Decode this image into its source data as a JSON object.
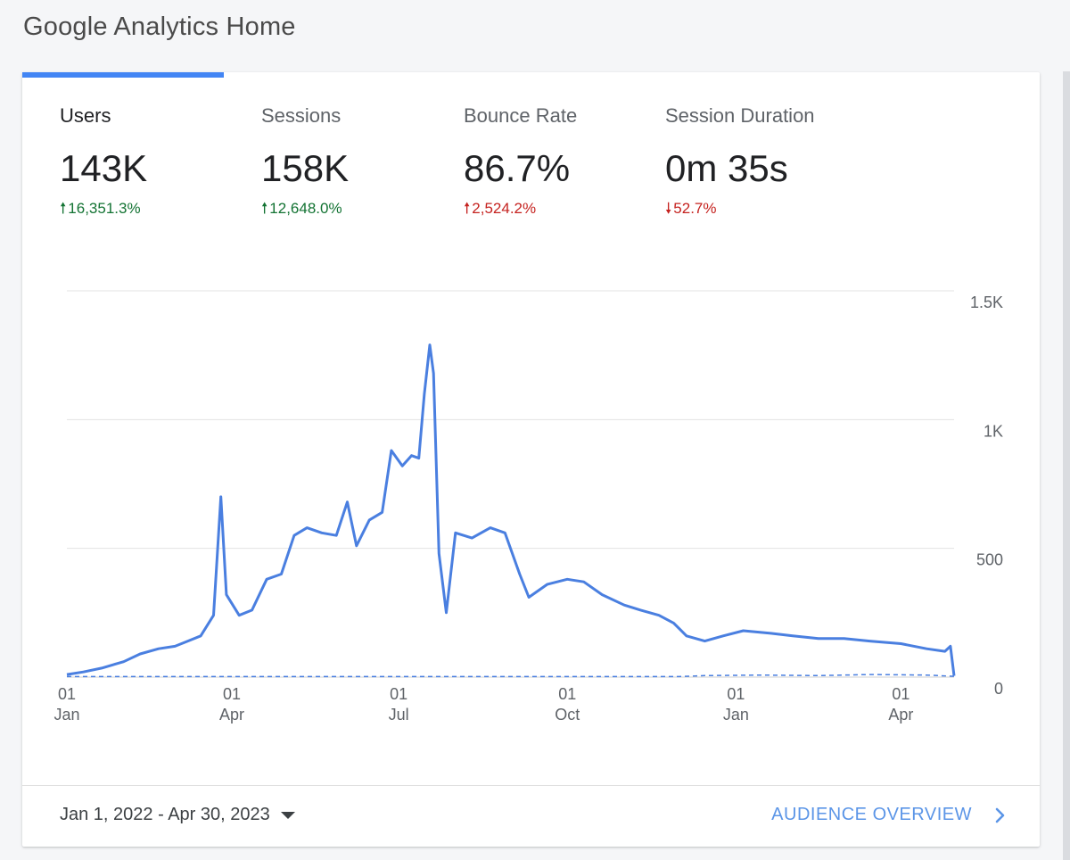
{
  "page": {
    "title": "Google Analytics Home"
  },
  "metrics": [
    {
      "label": "Users",
      "value": "143K",
      "change": "16,351.3%",
      "direction": "up",
      "color": "#137333"
    },
    {
      "label": "Sessions",
      "value": "158K",
      "change": "12,648.0%",
      "direction": "up",
      "color": "#137333"
    },
    {
      "label": "Bounce Rate",
      "value": "86.7%",
      "change": "2,524.2%",
      "direction": "up",
      "color": "#c5221f"
    },
    {
      "label": "Session Duration",
      "value": "0m 35s",
      "change": "52.7%",
      "direction": "down",
      "color": "#c5221f"
    }
  ],
  "icons": {
    "up_arrow": "arrow-up-icon",
    "down_arrow": "arrow-down-icon",
    "dropdown": "caret-down-icon",
    "chevron": "chevron-right-icon"
  },
  "colors": {
    "accent": "#4285f4",
    "positive": "#137333",
    "negative": "#c5221f",
    "link": "#5b95e7"
  },
  "footer": {
    "date_range": "Jan 1, 2022 - Apr 30, 2023",
    "link_label": "AUDIENCE OVERVIEW"
  },
  "chart_data": {
    "type": "line",
    "y_ticks": [
      "1.5K",
      "1K",
      "500",
      "0"
    ],
    "y_tick_values": [
      1500,
      1000,
      500,
      0
    ],
    "ylim": [
      0,
      1500
    ],
    "x_ticks": [
      {
        "day": "01",
        "month": "Jan"
      },
      {
        "day": "01",
        "month": "Apr"
      },
      {
        "day": "01",
        "month": "Jul"
      },
      {
        "day": "01",
        "month": "Oct"
      },
      {
        "day": "01",
        "month": "Jan"
      },
      {
        "day": "01",
        "month": "Apr"
      }
    ],
    "x_tick_dates": [
      "2022-01-01",
      "2022-04-01",
      "2022-07-01",
      "2022-10-01",
      "2023-01-01",
      "2023-04-01"
    ],
    "xlim": [
      "2022-01-01",
      "2023-04-30"
    ],
    "grid": true,
    "series": [
      {
        "line_style": "solid",
        "color": "#4a7fe0",
        "points": [
          [
            "2022-01-01",
            10
          ],
          [
            "2022-01-10",
            20
          ],
          [
            "2022-01-20",
            35
          ],
          [
            "2022-02-01",
            60
          ],
          [
            "2022-02-10",
            90
          ],
          [
            "2022-02-20",
            110
          ],
          [
            "2022-03-01",
            120
          ],
          [
            "2022-03-08",
            140
          ],
          [
            "2022-03-15",
            160
          ],
          [
            "2022-03-22",
            240
          ],
          [
            "2022-03-26",
            700
          ],
          [
            "2022-03-29",
            320
          ],
          [
            "2022-04-05",
            240
          ],
          [
            "2022-04-12",
            260
          ],
          [
            "2022-04-20",
            380
          ],
          [
            "2022-04-28",
            400
          ],
          [
            "2022-05-05",
            550
          ],
          [
            "2022-05-12",
            580
          ],
          [
            "2022-05-20",
            560
          ],
          [
            "2022-05-28",
            550
          ],
          [
            "2022-06-03",
            680
          ],
          [
            "2022-06-08",
            510
          ],
          [
            "2022-06-15",
            610
          ],
          [
            "2022-06-22",
            640
          ],
          [
            "2022-06-27",
            880
          ],
          [
            "2022-07-03",
            820
          ],
          [
            "2022-07-08",
            860
          ],
          [
            "2022-07-12",
            850
          ],
          [
            "2022-07-15",
            1100
          ],
          [
            "2022-07-18",
            1290
          ],
          [
            "2022-07-20",
            1180
          ],
          [
            "2022-07-23",
            480
          ],
          [
            "2022-07-27",
            250
          ],
          [
            "2022-08-01",
            560
          ],
          [
            "2022-08-10",
            540
          ],
          [
            "2022-08-20",
            580
          ],
          [
            "2022-08-28",
            560
          ],
          [
            "2022-09-05",
            400
          ],
          [
            "2022-09-10",
            310
          ],
          [
            "2022-09-20",
            360
          ],
          [
            "2022-10-01",
            380
          ],
          [
            "2022-10-10",
            370
          ],
          [
            "2022-10-20",
            320
          ],
          [
            "2022-11-01",
            280
          ],
          [
            "2022-11-10",
            260
          ],
          [
            "2022-11-20",
            240
          ],
          [
            "2022-11-28",
            210
          ],
          [
            "2022-12-05",
            160
          ],
          [
            "2022-12-15",
            140
          ],
          [
            "2022-12-25",
            160
          ],
          [
            "2023-01-05",
            180
          ],
          [
            "2023-01-20",
            170
          ],
          [
            "2023-02-01",
            160
          ],
          [
            "2023-02-15",
            150
          ],
          [
            "2023-03-01",
            150
          ],
          [
            "2023-03-15",
            140
          ],
          [
            "2023-04-01",
            130
          ],
          [
            "2023-04-15",
            110
          ],
          [
            "2023-04-25",
            100
          ],
          [
            "2023-04-28",
            120
          ],
          [
            "2023-04-30",
            5
          ]
        ]
      },
      {
        "line_style": "dashed",
        "color": "#4a7fe0",
        "points": [
          [
            "2022-01-01",
            2
          ],
          [
            "2022-06-01",
            2
          ],
          [
            "2022-12-01",
            2
          ],
          [
            "2022-12-15",
            6
          ],
          [
            "2023-01-15",
            8
          ],
          [
            "2023-02-15",
            6
          ],
          [
            "2023-03-15",
            10
          ],
          [
            "2023-04-15",
            8
          ],
          [
            "2023-04-30",
            3
          ]
        ]
      }
    ]
  }
}
